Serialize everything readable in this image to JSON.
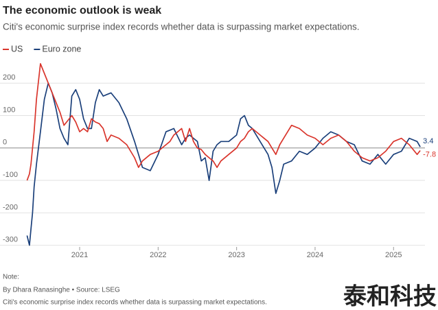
{
  "chart_data": {
    "type": "line",
    "title": "The economic outlook is weak",
    "subtitle": "Citi's economic surprise index records whether data is surpassing market expectations.",
    "note": "Note:",
    "byline": "By Dhara Ranasinghe • Source: LSEG",
    "footnote": "Citi's economic surprise index records whether data is surpassing market expectations.",
    "watermark": "泰和科技",
    "xlim": [
      2020.3,
      2025.4
    ],
    "xticks": [
      2021,
      2022,
      2023,
      2024,
      2025
    ],
    "ylim": [
      -305,
      285
    ],
    "yticks": [
      -300,
      -200,
      -100,
      0,
      100,
      200
    ],
    "grid": true,
    "legend": "top-left",
    "x": [
      2020.33,
      2020.36,
      2020.38,
      2020.4,
      2020.42,
      2020.45,
      2020.5,
      2020.55,
      2020.6,
      2020.65,
      2020.7,
      2020.75,
      2020.8,
      2020.85,
      2020.9,
      2020.95,
      2021.0,
      2021.05,
      2021.1,
      2021.15,
      2021.2,
      2021.25,
      2021.3,
      2021.35,
      2021.4,
      2021.5,
      2021.6,
      2021.7,
      2021.75,
      2021.8,
      2021.9,
      2022.0,
      2022.1,
      2022.15,
      2022.2,
      2022.3,
      2022.35,
      2022.4,
      2022.45,
      2022.5,
      2022.55,
      2022.6,
      2022.65,
      2022.7,
      2022.75,
      2022.8,
      2022.9,
      2023.0,
      2023.05,
      2023.1,
      2023.15,
      2023.2,
      2023.3,
      2023.4,
      2023.45,
      2023.5,
      2023.55,
      2023.6,
      2023.7,
      2023.8,
      2023.9,
      2024.0,
      2024.1,
      2024.2,
      2024.3,
      2024.4,
      2024.5,
      2024.6,
      2024.7,
      2024.8,
      2024.9,
      2025.0,
      2025.1,
      2025.2,
      2025.3,
      2025.34
    ],
    "series": [
      {
        "name": "US",
        "color": "#d9342b",
        "values": [
          -100,
          -80,
          -50,
          0,
          50,
          150,
          260,
          230,
          200,
          170,
          140,
          110,
          70,
          85,
          100,
          80,
          50,
          60,
          50,
          90,
          80,
          75,
          60,
          20,
          40,
          30,
          10,
          -30,
          -60,
          -40,
          -20,
          -10,
          10,
          20,
          40,
          60,
          20,
          60,
          20,
          0,
          -5,
          -20,
          -30,
          -40,
          -60,
          -40,
          -20,
          0,
          20,
          30,
          50,
          60,
          40,
          20,
          0,
          -20,
          10,
          30,
          70,
          60,
          40,
          30,
          10,
          30,
          40,
          20,
          -10,
          -30,
          -40,
          -30,
          -10,
          20,
          30,
          10,
          -20,
          -7.8
        ]
      },
      {
        "name": "Euro zone",
        "color": "#1a3f7a",
        "values": [
          -270,
          -300,
          -250,
          -200,
          -120,
          -50,
          50,
          150,
          200,
          170,
          120,
          60,
          30,
          10,
          160,
          180,
          150,
          90,
          60,
          60,
          140,
          180,
          160,
          165,
          170,
          140,
          90,
          20,
          -20,
          -60,
          -70,
          -20,
          50,
          55,
          60,
          10,
          30,
          40,
          30,
          20,
          -40,
          -30,
          -100,
          -10,
          10,
          20,
          20,
          40,
          90,
          100,
          70,
          60,
          20,
          -20,
          -60,
          -140,
          -100,
          -50,
          -40,
          -10,
          -20,
          0,
          30,
          50,
          40,
          20,
          10,
          -40,
          -50,
          -20,
          -50,
          -20,
          -10,
          30,
          20,
          3.4
        ]
      }
    ]
  }
}
